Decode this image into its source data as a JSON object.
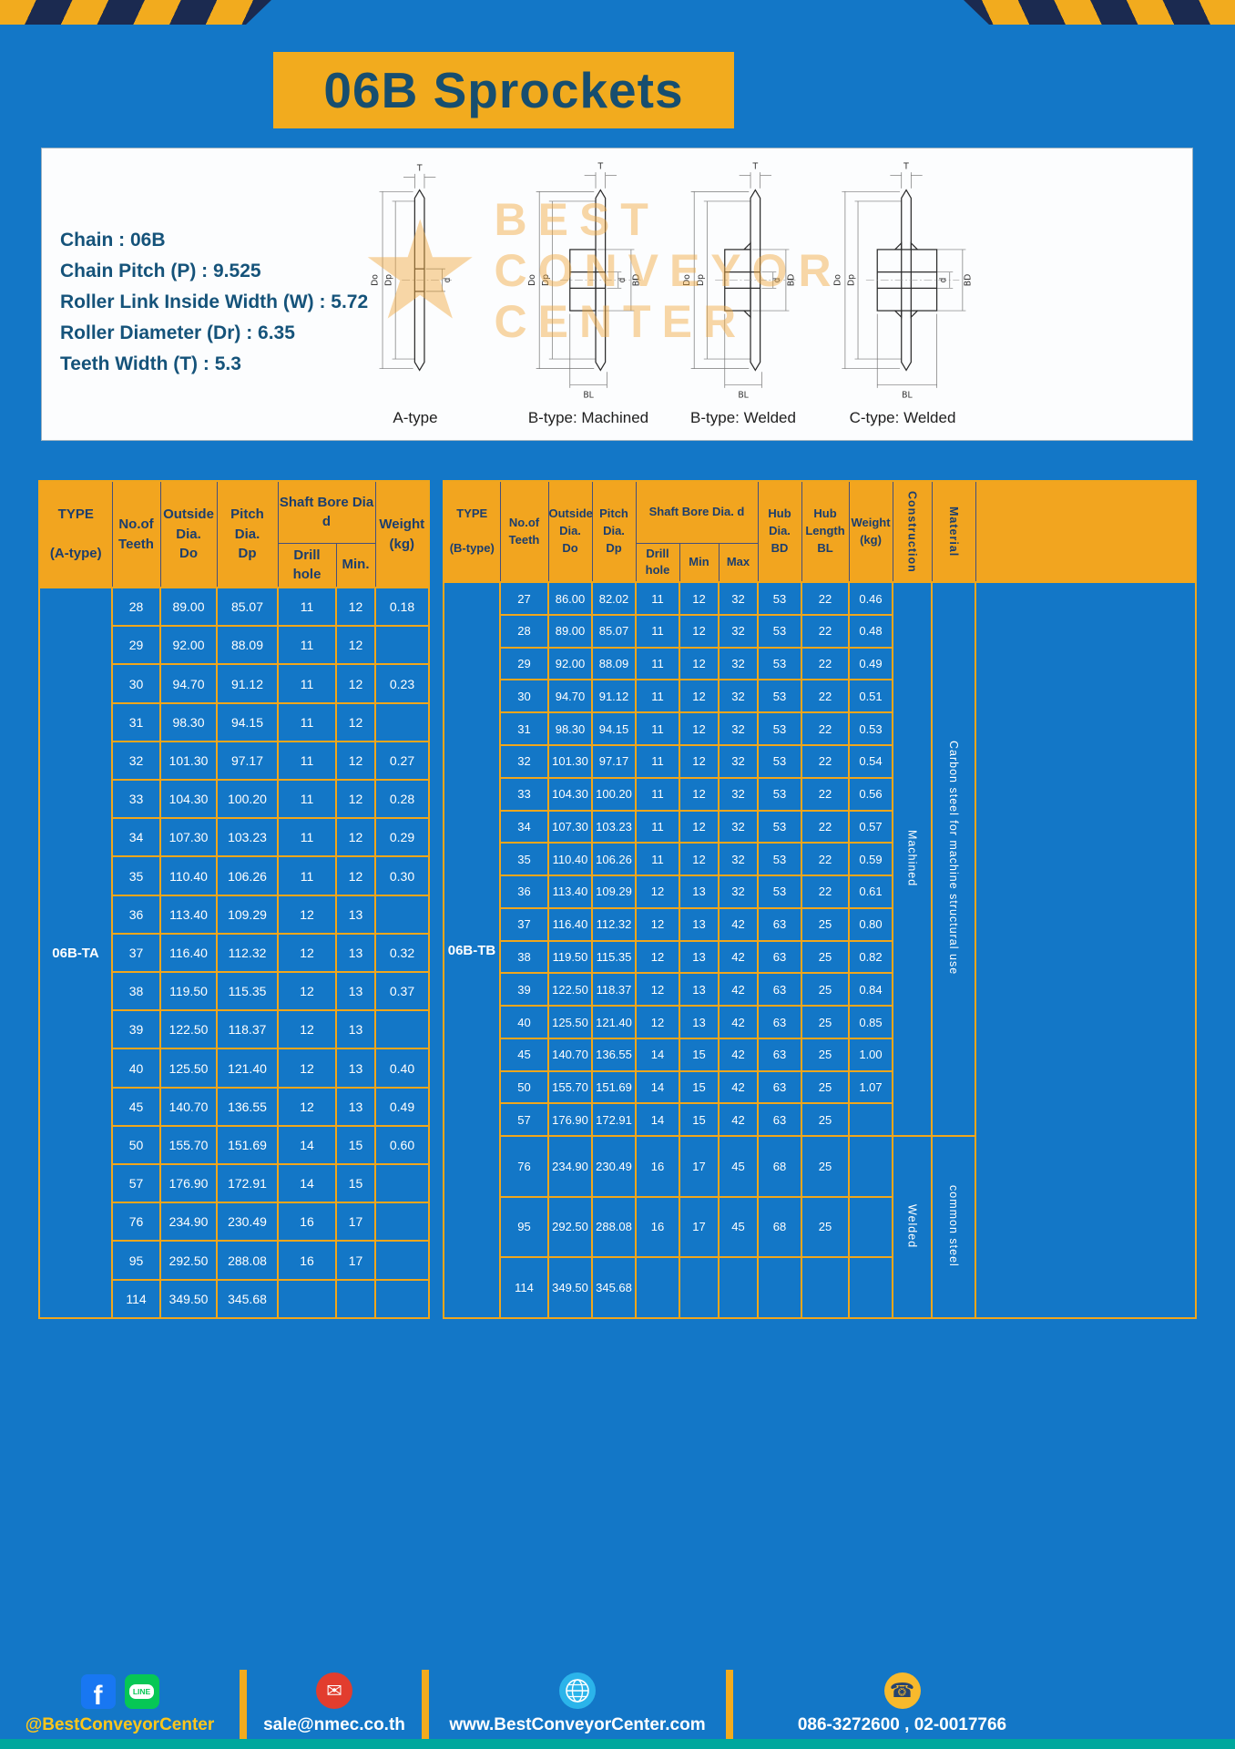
{
  "page": {
    "title": "06B Sprockets"
  },
  "specs": {
    "lines": [
      "Chain : 06B",
      "Chain Pitch (P) : 9.525",
      "Roller Link Inside Width (W) : 5.72",
      "Roller Diameter (Dr) : 6.35",
      "Teeth Width (T) : 5.3"
    ]
  },
  "watermark": {
    "star": "★",
    "lines": [
      "BEST",
      "CONVEYOR",
      "CENTER"
    ]
  },
  "diagram": {
    "captions": [
      "A-type",
      "B-type: Machined",
      "B-type: Welded",
      "C-type: Welded"
    ],
    "labels": {
      "t": "T",
      "outer": "Do",
      "pitch": "Dp",
      "bore": "d",
      "hub_dia": "BD",
      "hub_len": "BL"
    }
  },
  "table_a": {
    "type_value": "06B-TA",
    "header": {
      "type": "TYPE\n\n(A-type)",
      "teeth": "No.of\nTeeth",
      "outside": "Outside\nDia.\nDo",
      "pitch": "Pitch Dia.\nDp",
      "shaft_bore": "Shaft Bore Dia d",
      "drill": "Drill hole",
      "min": "Min.",
      "weight": "Weight\n(kg)"
    },
    "rows": [
      [
        "28",
        "89.00",
        "85.07",
        "11",
        "12",
        "0.18"
      ],
      [
        "29",
        "92.00",
        "88.09",
        "11",
        "12",
        ""
      ],
      [
        "30",
        "94.70",
        "91.12",
        "11",
        "12",
        "0.23"
      ],
      [
        "31",
        "98.30",
        "94.15",
        "11",
        "12",
        ""
      ],
      [
        "32",
        "101.30",
        "97.17",
        "11",
        "12",
        "0.27"
      ],
      [
        "33",
        "104.30",
        "100.20",
        "11",
        "12",
        "0.28"
      ],
      [
        "34",
        "107.30",
        "103.23",
        "11",
        "12",
        "0.29"
      ],
      [
        "35",
        "110.40",
        "106.26",
        "11",
        "12",
        "0.30"
      ],
      [
        "36",
        "113.40",
        "109.29",
        "12",
        "13",
        ""
      ],
      [
        "37",
        "116.40",
        "112.32",
        "12",
        "13",
        "0.32"
      ],
      [
        "38",
        "119.50",
        "115.35",
        "12",
        "13",
        "0.37"
      ],
      [
        "39",
        "122.50",
        "118.37",
        "12",
        "13",
        ""
      ],
      [
        "40",
        "125.50",
        "121.40",
        "12",
        "13",
        "0.40"
      ],
      [
        "45",
        "140.70",
        "136.55",
        "12",
        "13",
        "0.49"
      ],
      [
        "50",
        "155.70",
        "151.69",
        "14",
        "15",
        "0.60"
      ],
      [
        "57",
        "176.90",
        "172.91",
        "14",
        "15",
        ""
      ],
      [
        "76",
        "234.90",
        "230.49",
        "16",
        "17",
        ""
      ],
      [
        "95",
        "292.50",
        "288.08",
        "16",
        "17",
        ""
      ],
      [
        "114",
        "349.50",
        "345.68",
        "",
        "",
        ""
      ]
    ]
  },
  "table_b": {
    "type_value": "06B-TB",
    "header": {
      "type": "TYPE\n\n(B-type)",
      "teeth": "No.of\nTeeth",
      "outside": "Outside\nDia.\nDo",
      "pitch": "Pitch\nDia.\nDp",
      "shaft_bore": "Shaft Bore Dia. d",
      "drill": "Drill hole",
      "min": "Min",
      "max": "Max",
      "hub_dia": "Hub\nDia.\nBD",
      "hub_len": "Hub\nLength\nBL",
      "weight": "Weight\n(kg)",
      "construction": "Construction",
      "material": "Material"
    },
    "rows": [
      [
        "27",
        "86.00",
        "82.02",
        "11",
        "12",
        "32",
        "53",
        "22",
        "0.46"
      ],
      [
        "28",
        "89.00",
        "85.07",
        "11",
        "12",
        "32",
        "53",
        "22",
        "0.48"
      ],
      [
        "29",
        "92.00",
        "88.09",
        "11",
        "12",
        "32",
        "53",
        "22",
        "0.49"
      ],
      [
        "30",
        "94.70",
        "91.12",
        "11",
        "12",
        "32",
        "53",
        "22",
        "0.51"
      ],
      [
        "31",
        "98.30",
        "94.15",
        "11",
        "12",
        "32",
        "53",
        "22",
        "0.53"
      ],
      [
        "32",
        "101.30",
        "97.17",
        "11",
        "12",
        "32",
        "53",
        "22",
        "0.54"
      ],
      [
        "33",
        "104.30",
        "100.20",
        "11",
        "12",
        "32",
        "53",
        "22",
        "0.56"
      ],
      [
        "34",
        "107.30",
        "103.23",
        "11",
        "12",
        "32",
        "53",
        "22",
        "0.57"
      ],
      [
        "35",
        "110.40",
        "106.26",
        "11",
        "12",
        "32",
        "53",
        "22",
        "0.59"
      ],
      [
        "36",
        "113.40",
        "109.29",
        "12",
        "13",
        "32",
        "53",
        "22",
        "0.61"
      ],
      [
        "37",
        "116.40",
        "112.32",
        "12",
        "13",
        "42",
        "63",
        "25",
        "0.80"
      ],
      [
        "38",
        "119.50",
        "115.35",
        "12",
        "13",
        "42",
        "63",
        "25",
        "0.82"
      ],
      [
        "39",
        "122.50",
        "118.37",
        "12",
        "13",
        "42",
        "63",
        "25",
        "0.84"
      ],
      [
        "40",
        "125.50",
        "121.40",
        "12",
        "13",
        "42",
        "63",
        "25",
        "0.85"
      ],
      [
        "45",
        "140.70",
        "136.55",
        "14",
        "15",
        "42",
        "63",
        "25",
        "1.00"
      ],
      [
        "50",
        "155.70",
        "151.69",
        "14",
        "15",
        "42",
        "63",
        "25",
        "1.07"
      ],
      [
        "57",
        "176.90",
        "172.91",
        "14",
        "15",
        "42",
        "63",
        "25",
        ""
      ],
      [
        "76",
        "234.90",
        "230.49",
        "16",
        "17",
        "45",
        "68",
        "25",
        ""
      ],
      [
        "95",
        "292.50",
        "288.08",
        "16",
        "17",
        "45",
        "68",
        "25",
        ""
      ],
      [
        "114",
        "349.50",
        "345.68",
        "",
        "",
        "",
        "",
        "",
        ""
      ]
    ],
    "groups": [
      {
        "name": "construction-cell",
        "items": [
          {
            "label": "Machined",
            "span": 17
          },
          {
            "label": "Welded",
            "span": 3
          }
        ]
      },
      {
        "name": "material-cell",
        "items": [
          {
            "label": "Carbon steel for machine structural use",
            "span": 17
          },
          {
            "label": "common steel",
            "span": 3
          }
        ]
      },
      {
        "name": "filler-cell",
        "items": [
          {
            "label": "",
            "span": 20
          }
        ]
      }
    ]
  },
  "footer": {
    "social_handle": "@BestConveyorCenter",
    "email": "sale@nmec.co.th",
    "website": "www.BestConveyorCenter.com",
    "phones": "086-3272600 , 02-0017766",
    "facebook_label": "f",
    "line_label": "LINE",
    "icons": {
      "email": "✉",
      "phone": "☎"
    }
  },
  "colors": {
    "page_blue": "#1377c7",
    "accent_yellow": "#f2ab1e",
    "dark_navy": "#1b2a50",
    "teal_strip": "#00a79d",
    "title_text": "#174e6f",
    "header_text": "#1c3e6d"
  }
}
